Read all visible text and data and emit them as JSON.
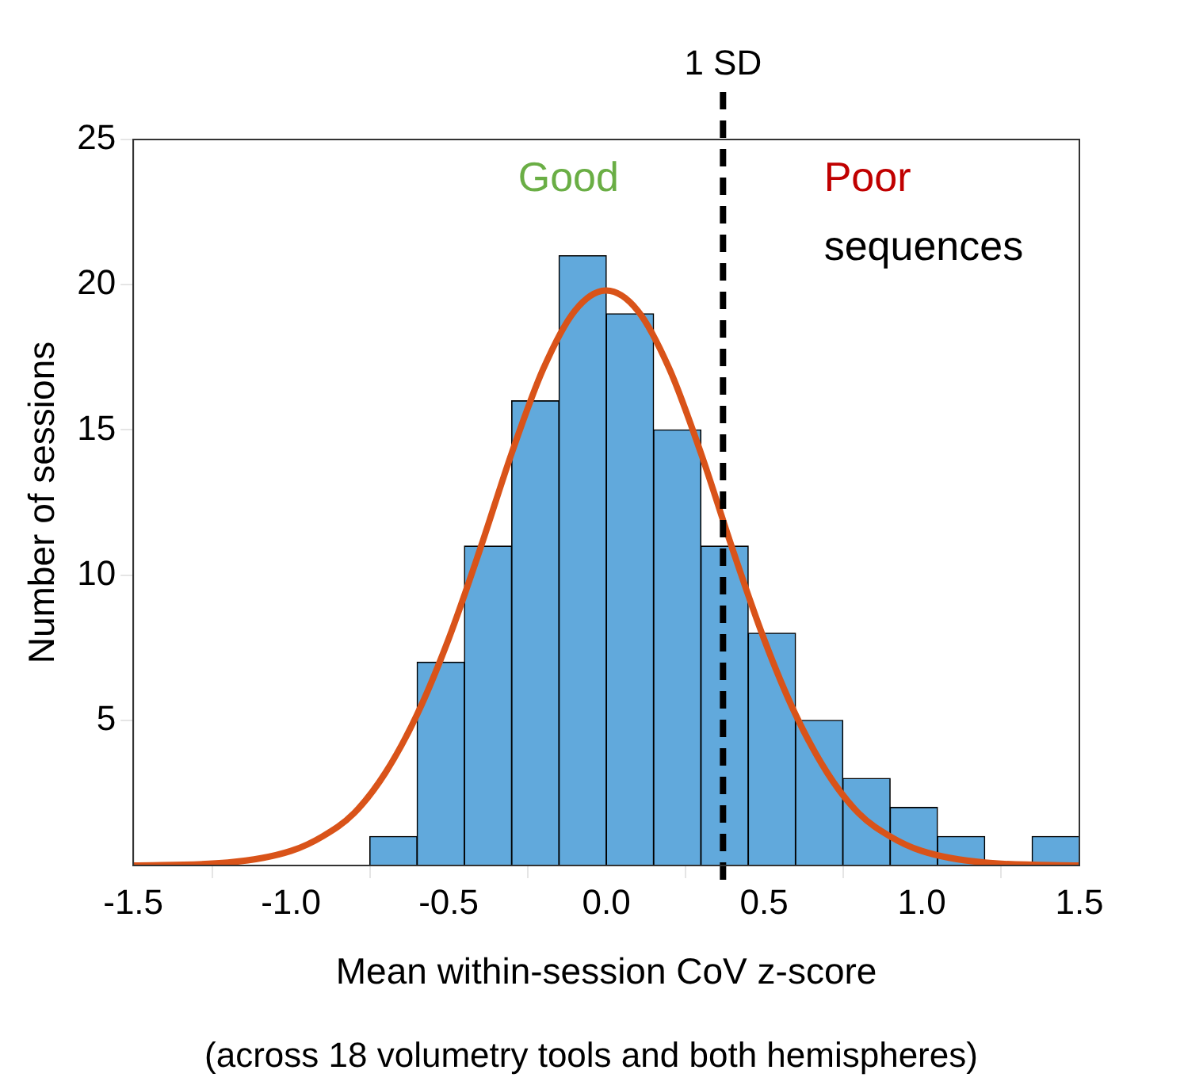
{
  "chart_data": {
    "type": "histogram",
    "xlabel": "Mean within-session CoV z-score",
    "ylabel": "Number of sessions",
    "bins": [
      -0.75,
      -0.6,
      -0.45,
      -0.3,
      -0.15,
      0,
      0.15,
      0.3,
      0.45,
      0.6,
      0.75,
      0.9,
      1.05,
      1.2,
      1.35,
      1.5
    ],
    "values": [
      1,
      7,
      11,
      16,
      21,
      19,
      15,
      11,
      8,
      5,
      3,
      2,
      1,
      0,
      1
    ],
    "color": "#61a9dc",
    "series": [
      {
        "type": "line",
        "color": "#d95319",
        "x": [
          -1.5,
          -1.2,
          -1.0,
          -0.9,
          -0.8,
          -0.7,
          -0.6,
          -0.5,
          -0.4,
          -0.3,
          -0.2,
          -0.1,
          0,
          0.1,
          0.2,
          0.3,
          0.4,
          0.5,
          0.6,
          0.7,
          0.8,
          0.9,
          1.0,
          1.2,
          1.5
        ],
        "values": [
          0,
          0.1,
          0.5,
          1.0,
          1.8,
          3.2,
          5.2,
          7.8,
          10.9,
          14.2,
          17.1,
          19.1,
          19.8,
          19.1,
          17.1,
          14.2,
          10.9,
          7.8,
          5.2,
          3.2,
          1.8,
          1.0,
          0.5,
          0.1,
          0
        ]
      }
    ],
    "xlim": [
      -1.5,
      1.5
    ],
    "xticks": [
      -1.5,
      {
        "value": -1,
        "label": "-1.0"
      },
      -0.5,
      {
        "value": 0,
        "label": "0.0"
      },
      0.5,
      {
        "value": 1,
        "label": "1.0"
      },
      1.5
    ],
    "ylim": [
      0,
      25
    ],
    "yticks": [
      5,
      10,
      15,
      20,
      25
    ],
    "ref_lines": [
      {
        "axis": "x",
        "value": 0.37,
        "label": "1 SD",
        "color": "#000000",
        "line_style": "dashed"
      }
    ],
    "annotations": [
      "Good",
      "Poor",
      "sequences",
      "(across 18 volumetry tools and both hemispheres)"
    ],
    "grid": false,
    "legend": false
  }
}
